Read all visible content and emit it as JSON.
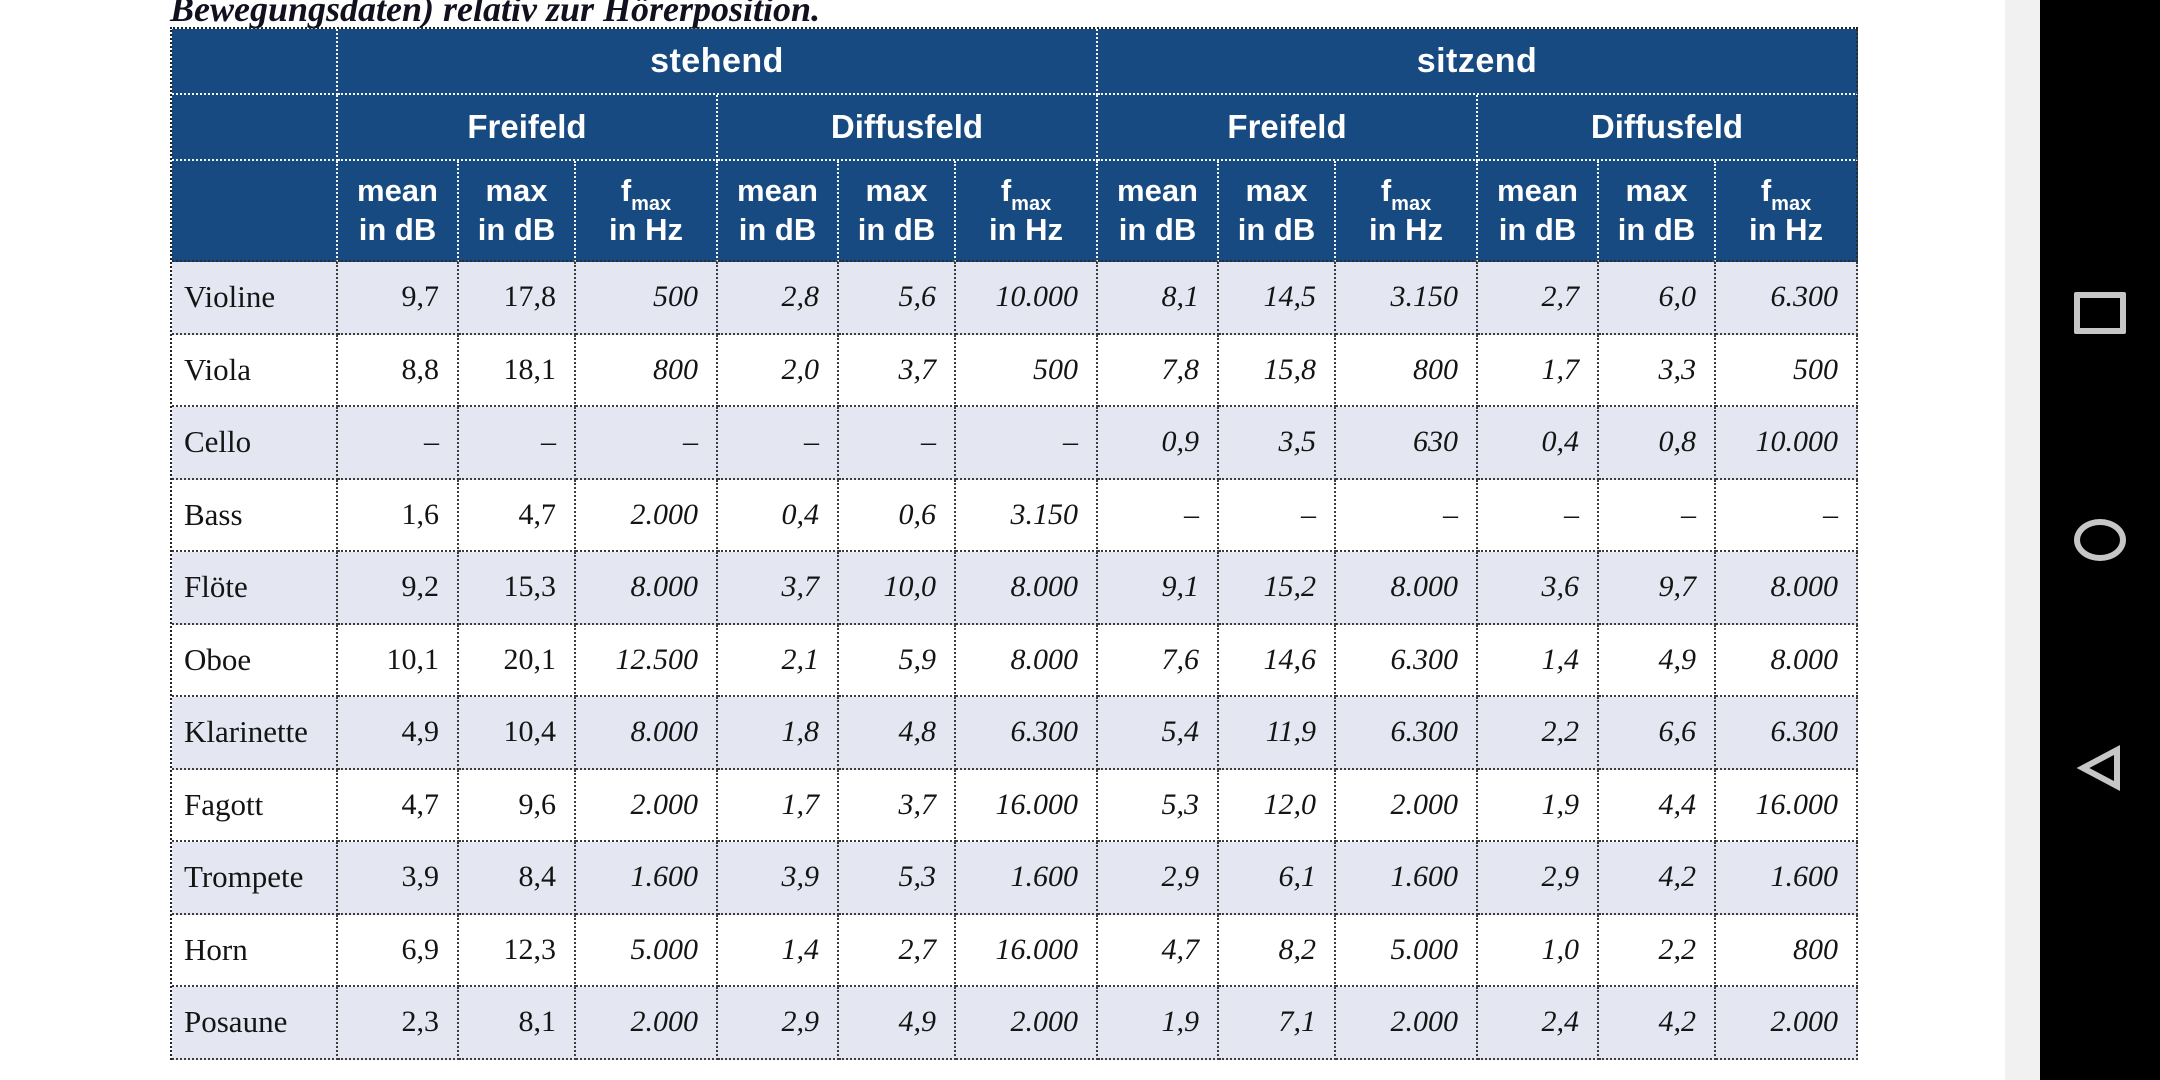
{
  "caption_fragment": "Bewegungsdaten) relativ zur Hörerposition.",
  "table": {
    "position_groups": [
      "stehend",
      "sitzend"
    ],
    "field_groups": [
      "Freifeld",
      "Diffusfeld",
      "Freifeld",
      "Diffusfeld"
    ],
    "metric": {
      "mean": "mean",
      "max": "max",
      "f": "f",
      "f_sub": "max",
      "unit_db": "in dB",
      "unit_hz": "in Hz"
    },
    "rows": [
      {
        "instrument": "Violine",
        "values": [
          "9,7",
          "17,8",
          "500",
          "2,8",
          "5,6",
          "10.000",
          "8,1",
          "14,5",
          "3.150",
          "2,7",
          "6,0",
          "6.300"
        ]
      },
      {
        "instrument": "Viola",
        "values": [
          "8,8",
          "18,1",
          "800",
          "2,0",
          "3,7",
          "500",
          "7,8",
          "15,8",
          "800",
          "1,7",
          "3,3",
          "500"
        ]
      },
      {
        "instrument": "Cello",
        "values": [
          "–",
          "–",
          "–",
          "–",
          "–",
          "–",
          "0,9",
          "3,5",
          "630",
          "0,4",
          "0,8",
          "10.000"
        ]
      },
      {
        "instrument": "Bass",
        "values": [
          "1,6",
          "4,7",
          "2.000",
          "0,4",
          "0,6",
          "3.150",
          "–",
          "–",
          "–",
          "–",
          "–",
          "–"
        ]
      },
      {
        "instrument": "Flöte",
        "values": [
          "9,2",
          "15,3",
          "8.000",
          "3,7",
          "10,0",
          "8.000",
          "9,1",
          "15,2",
          "8.000",
          "3,6",
          "9,7",
          "8.000"
        ]
      },
      {
        "instrument": "Oboe",
        "values": [
          "10,1",
          "20,1",
          "12.500",
          "2,1",
          "5,9",
          "8.000",
          "7,6",
          "14,6",
          "6.300",
          "1,4",
          "4,9",
          "8.000"
        ]
      },
      {
        "instrument": "Klarinette",
        "values": [
          "4,9",
          "10,4",
          "8.000",
          "1,8",
          "4,8",
          "6.300",
          "5,4",
          "11,9",
          "6.300",
          "2,2",
          "6,6",
          "6.300"
        ]
      },
      {
        "instrument": "Fagott",
        "values": [
          "4,7",
          "9,6",
          "2.000",
          "1,7",
          "3,7",
          "16.000",
          "5,3",
          "12,0",
          "2.000",
          "1,9",
          "4,4",
          "16.000"
        ]
      },
      {
        "instrument": "Trompete",
        "values": [
          "3,9",
          "8,4",
          "1.600",
          "3,9",
          "5,3",
          "1.600",
          "2,9",
          "6,1",
          "1.600",
          "2,9",
          "4,2",
          "1.600"
        ]
      },
      {
        "instrument": "Horn",
        "values": [
          "6,9",
          "12,3",
          "5.000",
          "1,4",
          "2,7",
          "16.000",
          "4,7",
          "8,2",
          "5.000",
          "1,0",
          "2,2",
          "800"
        ]
      },
      {
        "instrument": "Posaune",
        "values": [
          "2,3",
          "8,1",
          "2.000",
          "2,9",
          "4,9",
          "2.000",
          "1,9",
          "7,1",
          "2.000",
          "2,4",
          "4,2",
          "2.000"
        ]
      }
    ]
  },
  "android_nav": {
    "buttons": [
      {
        "name": "recents",
        "shape": "square"
      },
      {
        "name": "home",
        "shape": "circle"
      },
      {
        "name": "back",
        "shape": "triangle-left"
      }
    ]
  },
  "colors": {
    "header_bg": "#164a80",
    "row_shade": "#e4e7f1",
    "nav_bar_bg": "#000000",
    "nav_icon": "#c6c6c6",
    "scroll_strip": "#f1f1f1"
  }
}
